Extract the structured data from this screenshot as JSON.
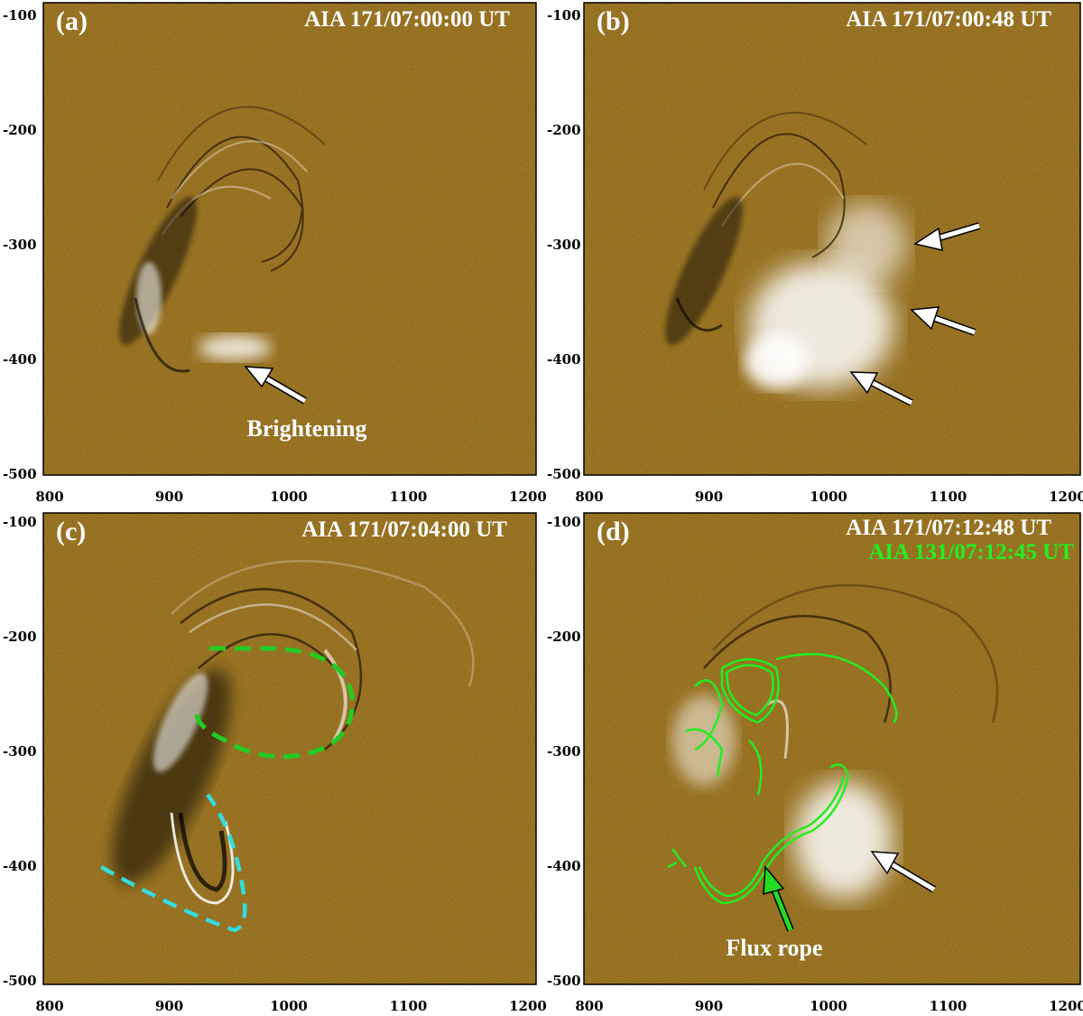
{
  "panels": [
    {
      "id": "a",
      "label": "(a)",
      "titles": [
        {
          "text": "AIA 171/07:00:00 UT",
          "color": "#ffffff"
        }
      ],
      "annotation": "Brightening"
    },
    {
      "id": "b",
      "label": "(b)",
      "titles": [
        {
          "text": "AIA 171/07:00:48 UT",
          "color": "#ffffff"
        }
      ],
      "annotation": ""
    },
    {
      "id": "c",
      "label": "(c)",
      "titles": [
        {
          "text": "AIA 171/07:04:00 UT",
          "color": "#ffffff"
        }
      ],
      "annotation": ""
    },
    {
      "id": "d",
      "label": "(d)",
      "titles": [
        {
          "text": "AIA 171/07:12:48 UT",
          "color": "#ffffff"
        },
        {
          "text": "AIA 131/07:12:45 UT",
          "color": "#22ee22"
        }
      ],
      "annotation": "Flux rope"
    }
  ],
  "axes": {
    "x_ticks": [
      "800",
      "900",
      "1000",
      "1100",
      "1200"
    ],
    "y_ticks": [
      "-100",
      "-200",
      "-300",
      "-400",
      "-500"
    ]
  },
  "colors": {
    "background": "#b78a2a",
    "green_contour": "#22ee22",
    "cyan_outline": "#33dddd",
    "arrow_white": "#ffffff",
    "arrow_green": "#22dd22"
  }
}
